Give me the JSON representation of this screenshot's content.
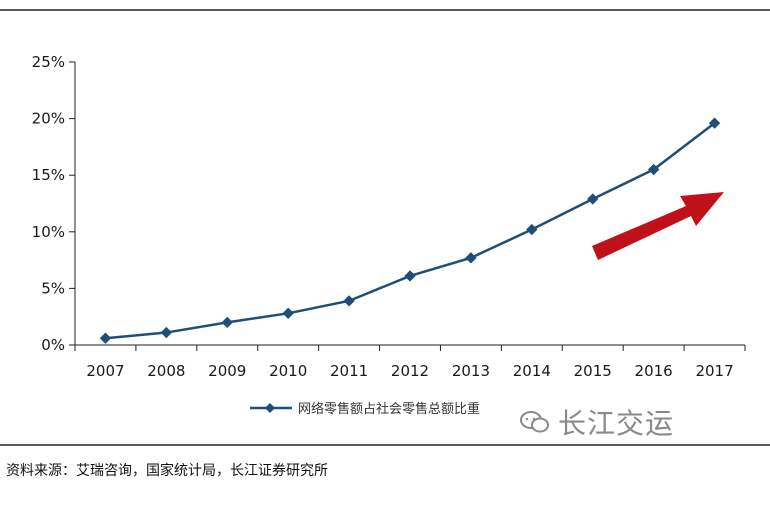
{
  "chart_data": {
    "type": "line",
    "title": "",
    "xlabel": "",
    "ylabel": "",
    "categories": [
      "2007",
      "2008",
      "2009",
      "2010",
      "2011",
      "2012",
      "2013",
      "2014",
      "2015",
      "2016",
      "2017"
    ],
    "series": [
      {
        "name": "网络零售额占社会零售总额比重",
        "values": [
          0.6,
          1.1,
          2.0,
          2.8,
          3.9,
          6.1,
          7.7,
          10.2,
          12.9,
          15.5,
          19.6
        ]
      }
    ],
    "ylim": [
      0,
      25
    ],
    "yticks": [
      "0%",
      "5%",
      "10%",
      "15%",
      "20%",
      "25%"
    ],
    "ytick_values": [
      0,
      5,
      10,
      15,
      20,
      25
    ],
    "grid": false,
    "legend": "bottom-center",
    "line_color": "#1f4e79",
    "arrow_color": "#c0111a",
    "annotation": "arrow-up-right"
  },
  "source_text": "资料来源：艾瑞咨询，国家统计局，长江证券研究所",
  "watermark_text": "长江交运"
}
